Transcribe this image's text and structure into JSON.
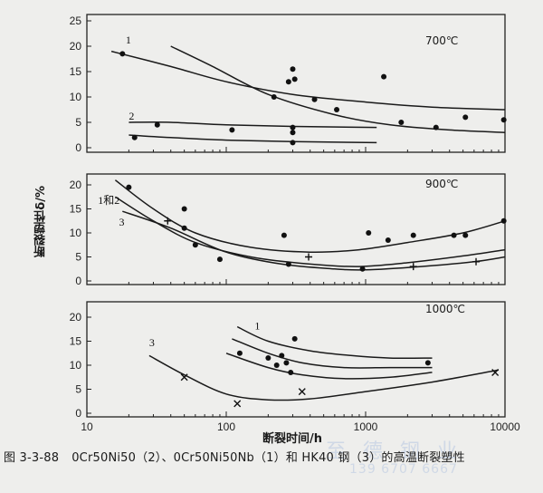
{
  "caption": {
    "number": "图 3-3-88",
    "text": "0Cr50Ni50（2）、0Cr50Ni50Nb（1）和 HK40 钢（3）的高温断裂塑性"
  },
  "watermark": {
    "line1": "至 德 钢 业",
    "line2": "139 6707 6667"
  },
  "chart_data": {
    "type": "scatter",
    "xlabel": "断裂时间/h",
    "ylabel": "断裂塑性δ/%",
    "x_scale": "log",
    "xlim": [
      10,
      10000
    ],
    "x_ticks": [
      "10",
      "100",
      "1000",
      "10000"
    ],
    "panels": [
      {
        "title": "700℃",
        "ylim": [
          0,
          25
        ],
        "y_ticks": [
          "0",
          "5",
          "10",
          "15",
          "20",
          "25"
        ],
        "curve_labels": [
          {
            "text": "1",
            "x": 19,
            "y": 20.5
          },
          {
            "text": "2",
            "x": 20,
            "y": 5.5
          }
        ],
        "points": [
          {
            "x": 18,
            "y": 18.5,
            "m": "dot"
          },
          {
            "x": 22,
            "y": 2,
            "m": "dot"
          },
          {
            "x": 32,
            "y": 4.5,
            "m": "dot"
          },
          {
            "x": 110,
            "y": 3.5,
            "m": "dot"
          },
          {
            "x": 220,
            "y": 10,
            "m": "dot"
          },
          {
            "x": 280,
            "y": 13,
            "m": "dot"
          },
          {
            "x": 300,
            "y": 15.5,
            "m": "dot"
          },
          {
            "x": 310,
            "y": 13.5,
            "m": "dot"
          },
          {
            "x": 300,
            "y": 4,
            "m": "dot"
          },
          {
            "x": 300,
            "y": 3,
            "m": "dot"
          },
          {
            "x": 300,
            "y": 1,
            "m": "dot"
          },
          {
            "x": 430,
            "y": 9.5,
            "m": "dot"
          },
          {
            "x": 620,
            "y": 7.5,
            "m": "dot"
          },
          {
            "x": 1350,
            "y": 14,
            "m": "dot"
          },
          {
            "x": 1800,
            "y": 5,
            "m": "dot"
          },
          {
            "x": 3200,
            "y": 4,
            "m": "dot"
          },
          {
            "x": 5200,
            "y": 6,
            "m": "dot"
          },
          {
            "x": 9800,
            "y": 5.5,
            "m": "dot"
          }
        ],
        "curves": [
          {
            "name": "1a",
            "points": [
              [
                40,
                20
              ],
              [
                80,
                16
              ],
              [
                200,
                10.5
              ],
              [
                600,
                6.5
              ],
              [
                1500,
                4.5
              ],
              [
                4000,
                3.5
              ],
              [
                10000,
                3
              ]
            ]
          },
          {
            "name": "1b",
            "points": [
              [
                15,
                19
              ],
              [
                40,
                16
              ],
              [
                100,
                13
              ],
              [
                300,
                10.5
              ],
              [
                1000,
                9
              ],
              [
                3000,
                8
              ],
              [
                10000,
                7.5
              ]
            ]
          },
          {
            "name": "2a",
            "points": [
              [
                20,
                5
              ],
              [
                40,
                5
              ],
              [
                100,
                4.5
              ],
              [
                300,
                4.2
              ],
              [
                1200,
                4
              ]
            ]
          },
          {
            "name": "2b",
            "points": [
              [
                20,
                2.5
              ],
              [
                40,
                2
              ],
              [
                100,
                1.5
              ],
              [
                300,
                1.2
              ],
              [
                1200,
                1
              ]
            ]
          }
        ]
      },
      {
        "title": "900℃",
        "ylim": [
          0,
          20
        ],
        "y_ticks": [
          "0",
          "5",
          "10",
          "15",
          "20"
        ],
        "curve_labels": [
          {
            "text": "1和2",
            "x": 12,
            "y": 16
          },
          {
            "text": "3",
            "x": 17,
            "y": 11.5
          }
        ],
        "points": [
          {
            "x": 20,
            "y": 19.5,
            "m": "dot"
          },
          {
            "x": 50,
            "y": 15,
            "m": "dot"
          },
          {
            "x": 50,
            "y": 11,
            "m": "dot"
          },
          {
            "x": 60,
            "y": 7.5,
            "m": "dot"
          },
          {
            "x": 90,
            "y": 4.5,
            "m": "dot"
          },
          {
            "x": 260,
            "y": 9.5,
            "m": "dot"
          },
          {
            "x": 280,
            "y": 3.5,
            "m": "dot"
          },
          {
            "x": 950,
            "y": 2.5,
            "m": "dot"
          },
          {
            "x": 1050,
            "y": 10,
            "m": "dot"
          },
          {
            "x": 1450,
            "y": 8.5,
            "m": "dot"
          },
          {
            "x": 2200,
            "y": 9.5,
            "m": "dot"
          },
          {
            "x": 4300,
            "y": 9.5,
            "m": "dot"
          },
          {
            "x": 5200,
            "y": 9.5,
            "m": "dot"
          },
          {
            "x": 9800,
            "y": 12.5,
            "m": "dot"
          },
          {
            "x": 38,
            "y": 12.5,
            "m": "plus"
          },
          {
            "x": 390,
            "y": 5,
            "m": "plus"
          },
          {
            "x": 2200,
            "y": 3,
            "m": "plus"
          },
          {
            "x": 6200,
            "y": 4,
            "m": "plus"
          }
        ],
        "curves": [
          {
            "name": "1and2a",
            "points": [
              [
                16,
                21
              ],
              [
                30,
                15
              ],
              [
                60,
                10
              ],
              [
                150,
                7
              ],
              [
                400,
                6
              ],
              [
                900,
                6.5
              ],
              [
                2000,
                8
              ],
              [
                5000,
                10
              ],
              [
                10000,
                12.5
              ]
            ]
          },
          {
            "name": "1and2b",
            "points": [
              [
                16,
                17.5
              ],
              [
                30,
                12.5
              ],
              [
                60,
                8
              ],
              [
                150,
                5
              ],
              [
                400,
                3.5
              ],
              [
                900,
                3
              ],
              [
                2000,
                3.8
              ],
              [
                5000,
                5.2
              ],
              [
                10000,
                6.5
              ]
            ]
          },
          {
            "name": "3",
            "points": [
              [
                18,
                14.5
              ],
              [
                40,
                11
              ],
              [
                100,
                6
              ],
              [
                250,
                3.5
              ],
              [
                600,
                2.5
              ],
              [
                1000,
                2.3
              ],
              [
                2500,
                3
              ],
              [
                6000,
                4
              ],
              [
                10000,
                5
              ]
            ]
          }
        ]
      },
      {
        "title": "1000℃",
        "ylim": [
          0,
          20
        ],
        "y_ticks": [
          "0",
          "5",
          "10",
          "15",
          "20"
        ],
        "curve_labels": [
          {
            "text": "1",
            "x": 160,
            "y": 17.5
          },
          {
            "text": "3",
            "x": 28,
            "y": 14
          }
        ],
        "points": [
          {
            "x": 310,
            "y": 15.5,
            "m": "dot"
          },
          {
            "x": 125,
            "y": 12.5,
            "m": "dot"
          },
          {
            "x": 200,
            "y": 11.5,
            "m": "dot"
          },
          {
            "x": 230,
            "y": 10,
            "m": "dot"
          },
          {
            "x": 250,
            "y": 12,
            "m": "dot"
          },
          {
            "x": 270,
            "y": 10.5,
            "m": "dot"
          },
          {
            "x": 290,
            "y": 8.5,
            "m": "dot"
          },
          {
            "x": 2800,
            "y": 10.5,
            "m": "dot"
          },
          {
            "x": 50,
            "y": 7.5,
            "m": "cross"
          },
          {
            "x": 120,
            "y": 2,
            "m": "cross"
          },
          {
            "x": 350,
            "y": 4.5,
            "m": "cross"
          },
          {
            "x": 8500,
            "y": 8.5,
            "m": "cross"
          }
        ],
        "curves": [
          {
            "name": "1a",
            "points": [
              [
                120,
                18
              ],
              [
                200,
                15
              ],
              [
                400,
                13
              ],
              [
                800,
                12
              ],
              [
                1500,
                11.5
              ],
              [
                3000,
                11.5
              ]
            ]
          },
          {
            "name": "1b",
            "points": [
              [
                110,
                15.5
              ],
              [
                200,
                12.5
              ],
              [
                350,
                10.5
              ],
              [
                700,
                9.5
              ],
              [
                1500,
                9.5
              ],
              [
                3000,
                9.5
              ]
            ]
          },
          {
            "name": "1c",
            "points": [
              [
                100,
                12.5
              ],
              [
                200,
                9.5
              ],
              [
                350,
                8
              ],
              [
                700,
                7.2
              ],
              [
                1500,
                7.5
              ],
              [
                3000,
                8.5
              ]
            ]
          },
          {
            "name": "3",
            "points": [
              [
                28,
                12
              ],
              [
                50,
                8
              ],
              [
                100,
                4
              ],
              [
                200,
                2.8
              ],
              [
                400,
                3
              ],
              [
                1000,
                4.5
              ],
              [
                3000,
                6.5
              ],
              [
                9000,
                9
              ]
            ]
          }
        ]
      }
    ]
  }
}
